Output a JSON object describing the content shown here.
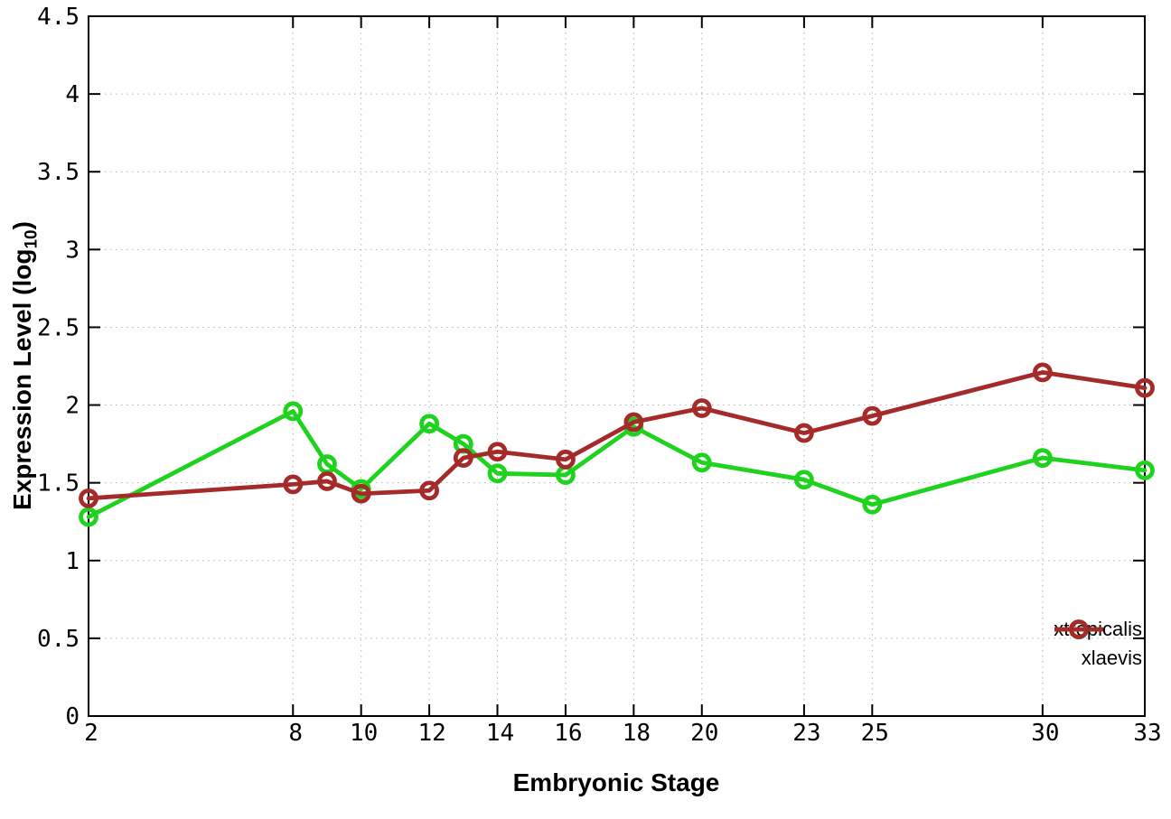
{
  "chart_data": {
    "type": "line",
    "title": "",
    "xlabel": "Embryonic Stage",
    "ylabel_main": "Expression Level (log",
    "ylabel_sub": "10",
    "ylabel_close": ")",
    "x": [
      2,
      8,
      9,
      10,
      12,
      13,
      14,
      16,
      18,
      20,
      23,
      25,
      30,
      33
    ],
    "xlim": [
      2,
      33
    ],
    "ylim": [
      0,
      4.5
    ],
    "xticks": [
      2,
      8,
      10,
      12,
      14,
      16,
      18,
      20,
      23,
      25,
      30,
      33
    ],
    "xtick_labels": [
      "2",
      "8",
      "10",
      "12",
      "14",
      "16",
      "18",
      "20",
      "23",
      "25",
      "30",
      "33"
    ],
    "yticks": [
      0,
      0.5,
      1,
      1.5,
      2,
      2.5,
      3,
      3.5,
      4,
      4.5
    ],
    "ytick_labels": [
      "0",
      "0.5",
      "1",
      "1.5",
      "2",
      "2.5",
      "3",
      "3.5",
      "4",
      "4.5"
    ],
    "grid": "dotted",
    "legend_position": "bottom-right",
    "colors": {
      "axis": "#000000",
      "grid": "#b3b3b3",
      "background": "#ffffff"
    },
    "series": [
      {
        "name": "xtropicalis",
        "color": "#1ed21e",
        "values": [
          1.28,
          1.96,
          1.62,
          1.46,
          1.88,
          1.75,
          1.56,
          1.55,
          1.86,
          1.63,
          1.52,
          1.36,
          1.66,
          1.58
        ]
      },
      {
        "name": "xlaevis",
        "color": "#a52a2a",
        "values": [
          1.4,
          1.49,
          1.51,
          1.43,
          1.45,
          1.66,
          1.7,
          1.65,
          1.89,
          1.98,
          1.82,
          1.93,
          2.21,
          2.11
        ]
      }
    ]
  }
}
